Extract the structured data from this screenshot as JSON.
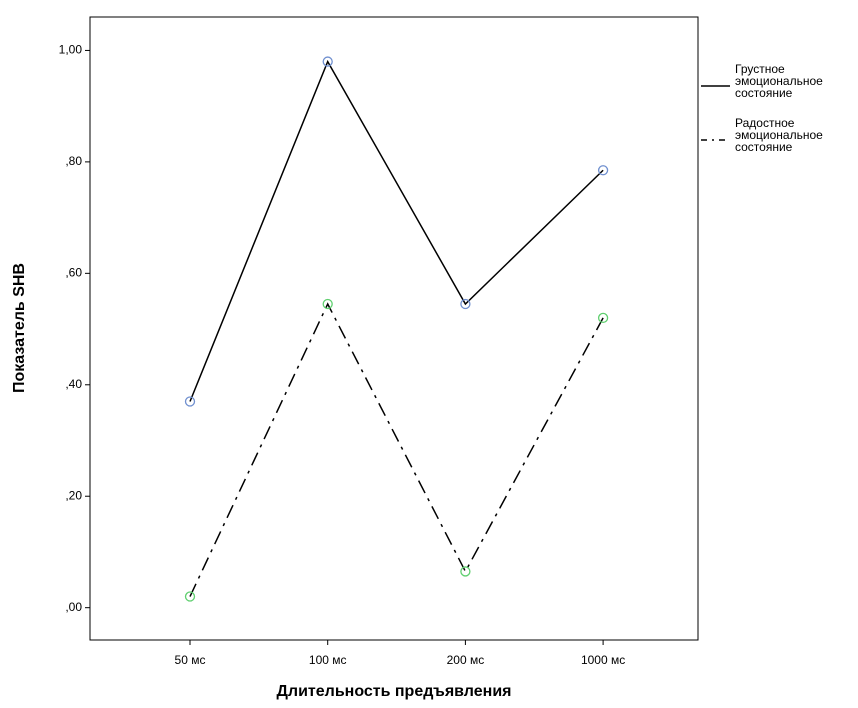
{
  "chart_data": {
    "type": "line",
    "x_label": "Длительность предъявления",
    "y_label": "Показатель SHB",
    "categories": [
      "50 мс",
      "100 мс",
      "200 мс",
      "1000 мс"
    ],
    "series": [
      {
        "name": "Грустное эмоциональное состояние",
        "color": "#6f8fcf",
        "line_style": "solid",
        "values": [
          0.37,
          0.98,
          0.545,
          0.785
        ]
      },
      {
        "name": "Радостное эмоциональное состояние",
        "color": "#5fcf6f",
        "line_style": "dashdot",
        "values": [
          0.02,
          0.545,
          0.065,
          0.52
        ]
      }
    ],
    "ylim": [
      -0.058,
      1.06
    ],
    "yticks": [
      {
        "value": 0,
        "label": ",00"
      },
      {
        "value": 0.2,
        "label": ",20"
      },
      {
        "value": 0.4,
        "label": ",40"
      },
      {
        "value": 0.6,
        "label": ",60"
      },
      {
        "value": 0.8,
        "label": ",80"
      },
      {
        "value": 1,
        "label": "1,00"
      }
    ],
    "grid": false,
    "legend": "right"
  }
}
